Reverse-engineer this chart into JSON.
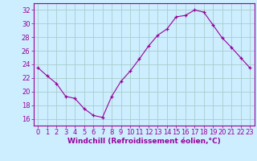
{
  "x": [
    0,
    1,
    2,
    3,
    4,
    5,
    6,
    7,
    8,
    9,
    10,
    11,
    12,
    13,
    14,
    15,
    16,
    17,
    18,
    19,
    20,
    21,
    22,
    23
  ],
  "y": [
    23.5,
    22.3,
    21.2,
    19.3,
    19.0,
    17.5,
    16.5,
    16.2,
    19.3,
    21.5,
    23.0,
    24.8,
    26.7,
    28.3,
    29.2,
    31.0,
    31.2,
    32.0,
    31.7,
    29.8,
    27.9,
    26.5,
    25.0,
    23.5
  ],
  "line_color": "#990099",
  "marker": "+",
  "bg_color": "#cceeff",
  "grid_color": "#aacccc",
  "axis_color": "#990099",
  "xlabel": "Windchill (Refroidissement éolien,°C)",
  "ylim": [
    15.0,
    33.0
  ],
  "yticks": [
    16,
    18,
    20,
    22,
    24,
    26,
    28,
    30,
    32
  ],
  "xticks": [
    0,
    1,
    2,
    3,
    4,
    5,
    6,
    7,
    8,
    9,
    10,
    11,
    12,
    13,
    14,
    15,
    16,
    17,
    18,
    19,
    20,
    21,
    22,
    23
  ],
  "xlabel_fontsize": 6.5,
  "tick_fontsize": 6.0
}
